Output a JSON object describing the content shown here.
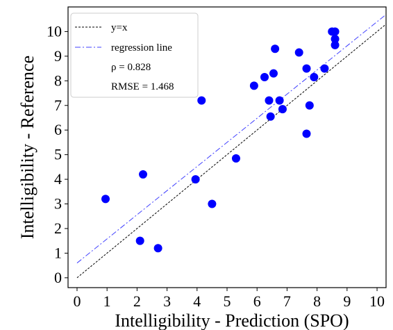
{
  "chart_data": {
    "type": "scatter",
    "xlabel": "Intelligibility - Prediction (SPO)",
    "ylabel": "Intelligibility - Reference",
    "xlim": [
      -0.3,
      10.3
    ],
    "ylim": [
      -0.4,
      11.0
    ],
    "xticks": [
      "0",
      "1",
      "2",
      "3",
      "4",
      "5",
      "6",
      "7",
      "8",
      "9",
      "10"
    ],
    "yticks": [
      "0",
      "1",
      "2",
      "3",
      "4",
      "5",
      "6",
      "7",
      "8",
      "9",
      "10"
    ],
    "grid": false,
    "legend_placement": "top-left",
    "legend": {
      "identity_label": "y=x",
      "regression_label": "regression line",
      "rho_text": "ρ = 0.828",
      "rmse_text": "RMSE = 1.468"
    },
    "identity_line": {
      "x": [
        0,
        10.3
      ],
      "y": [
        0,
        10.3
      ]
    },
    "regression_line": {
      "intercept": 0.6,
      "slope": 0.98
    },
    "points": [
      {
        "x": 0.95,
        "y": 3.2
      },
      {
        "x": 2.1,
        "y": 1.5
      },
      {
        "x": 2.2,
        "y": 4.2
      },
      {
        "x": 2.7,
        "y": 1.2
      },
      {
        "x": 3.95,
        "y": 4.0
      },
      {
        "x": 4.15,
        "y": 7.2
      },
      {
        "x": 4.5,
        "y": 3.0
      },
      {
        "x": 5.3,
        "y": 4.85
      },
      {
        "x": 5.9,
        "y": 7.8
      },
      {
        "x": 6.25,
        "y": 8.15
      },
      {
        "x": 6.4,
        "y": 7.2
      },
      {
        "x": 6.45,
        "y": 6.55
      },
      {
        "x": 6.55,
        "y": 8.3
      },
      {
        "x": 6.6,
        "y": 9.3
      },
      {
        "x": 6.75,
        "y": 7.2
      },
      {
        "x": 6.85,
        "y": 6.85
      },
      {
        "x": 7.4,
        "y": 9.15
      },
      {
        "x": 7.65,
        "y": 8.5
      },
      {
        "x": 7.65,
        "y": 5.85
      },
      {
        "x": 7.75,
        "y": 7.0
      },
      {
        "x": 7.9,
        "y": 8.15
      },
      {
        "x": 8.25,
        "y": 8.5
      },
      {
        "x": 8.5,
        "y": 10.0
      },
      {
        "x": 8.6,
        "y": 10.0
      },
      {
        "x": 8.6,
        "y": 9.7
      },
      {
        "x": 8.6,
        "y": 9.45
      }
    ],
    "colors": {
      "points": "#0000ff",
      "identity_line": "#000000",
      "regression_line": "#4040ff",
      "axes": "#000000",
      "legend_border": "#cccccc"
    }
  }
}
